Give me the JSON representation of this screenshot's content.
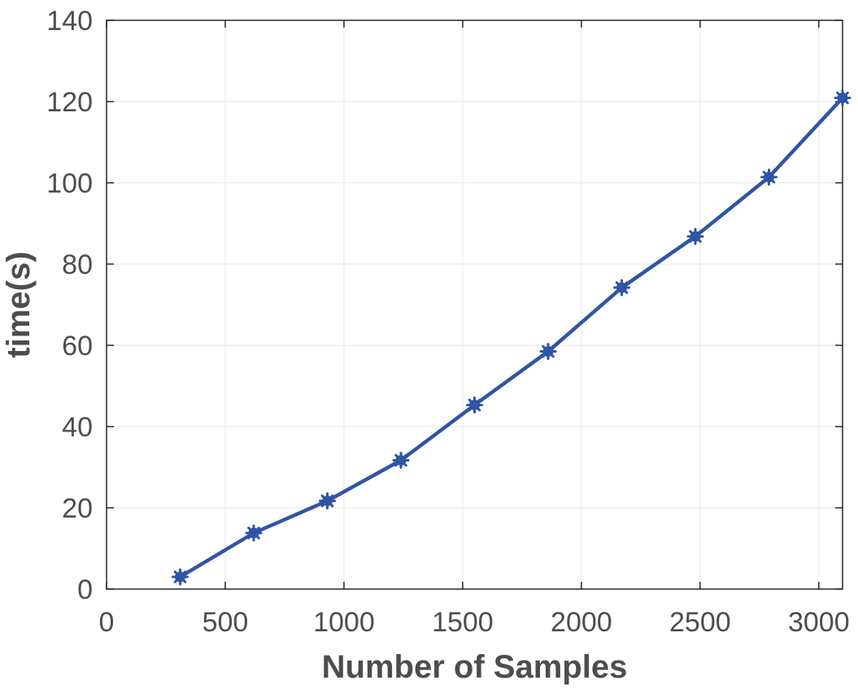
{
  "chart_data": {
    "type": "line",
    "title": "",
    "xlabel": "Number of Samples",
    "ylabel": "time(s)",
    "xlim": [
      0,
      3100
    ],
    "ylim": [
      0,
      140
    ],
    "xticks": [
      0,
      500,
      1000,
      1500,
      2000,
      2500,
      3000
    ],
    "yticks": [
      0,
      20,
      40,
      60,
      80,
      100,
      120,
      140
    ],
    "xtick_labels": [
      "0",
      "500",
      "1000",
      "1500",
      "2000",
      "2500",
      "3000"
    ],
    "ytick_labels": [
      "0",
      "20",
      "40",
      "60",
      "80",
      "100",
      "120",
      "140"
    ],
    "grid": true,
    "series": [
      {
        "color": "#2f55a4",
        "marker": "asterisk-filled",
        "x": [
          310,
          620,
          930,
          1240,
          1550,
          1860,
          2170,
          2480,
          2790,
          3100
        ],
        "y": [
          3,
          13.8,
          21.7,
          31.7,
          45.3,
          58.5,
          74.2,
          86.8,
          101.4,
          120.9
        ]
      }
    ]
  },
  "colors": {
    "axis": "#262626",
    "grid": "#e6e6e6",
    "text": "#4d4d4d",
    "line": "#2f55a4"
  }
}
